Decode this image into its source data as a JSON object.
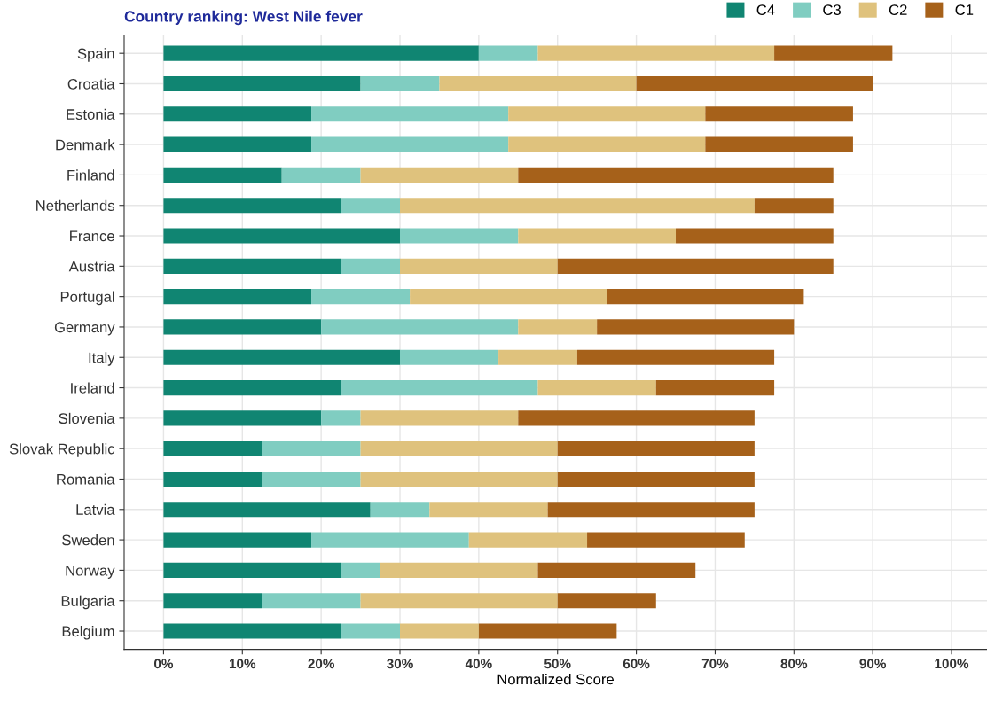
{
  "chart_data": {
    "type": "bar",
    "orientation": "horizontal",
    "stacked": true,
    "title": "Country ranking: West Nile fever",
    "xlabel": "Normalized Score",
    "categories": [
      "Spain",
      "Croatia",
      "Estonia",
      "Denmark",
      "Finland",
      "Netherlands",
      "France",
      "Austria",
      "Portugal",
      "Germany",
      "Italy",
      "Ireland",
      "Slovenia",
      "Slovak Republic",
      "Romania",
      "Latvia",
      "Sweden",
      "Norway",
      "Bulgaria",
      "Belgium"
    ],
    "series": [
      {
        "name": "C4",
        "color": "#108572",
        "values": [
          40,
          25,
          18.75,
          18.75,
          15,
          22.5,
          30,
          22.5,
          18.75,
          20,
          30,
          22.5,
          20,
          12.5,
          12.5,
          26.25,
          18.75,
          22.5,
          12.5,
          22.5
        ]
      },
      {
        "name": "C3",
        "color": "#80cdc1",
        "values": [
          7.5,
          10,
          25,
          25,
          10,
          7.5,
          15,
          7.5,
          12.5,
          25,
          12.5,
          25,
          5,
          12.5,
          12.5,
          7.5,
          20,
          5,
          12.5,
          7.5
        ]
      },
      {
        "name": "C2",
        "color": "#dfc27d",
        "values": [
          30,
          25,
          25,
          25,
          20,
          45,
          20,
          20,
          25,
          10,
          10,
          15,
          20,
          25,
          25,
          15,
          15,
          20,
          25,
          10
        ]
      },
      {
        "name": "C1",
        "color": "#a6611a",
        "values": [
          15,
          30,
          18.75,
          18.75,
          40,
          10,
          20,
          35,
          25,
          25,
          25,
          15,
          30,
          25,
          25,
          26.25,
          20,
          20,
          12.5,
          17.5
        ]
      }
    ],
    "xlim": [
      -5,
      104.5
    ],
    "xticks": [
      {
        "value": 0,
        "label": "0%"
      },
      {
        "value": 10,
        "label": "10%"
      },
      {
        "value": 20,
        "label": "20%"
      },
      {
        "value": 30,
        "label": "30%"
      },
      {
        "value": 40,
        "label": "40%"
      },
      {
        "value": 50,
        "label": "50%"
      },
      {
        "value": 60,
        "label": "60%"
      },
      {
        "value": 70,
        "label": "70%"
      },
      {
        "value": 80,
        "label": "80%"
      },
      {
        "value": 90,
        "label": "90%"
      },
      {
        "value": 100,
        "label": "100%"
      }
    ],
    "grid": true,
    "legend": "top right"
  }
}
